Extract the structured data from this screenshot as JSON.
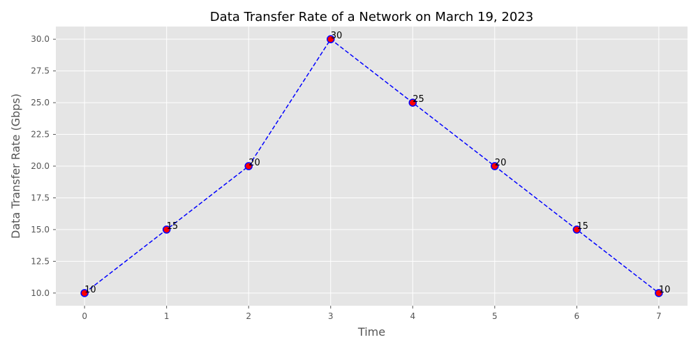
{
  "chart_data": {
    "type": "line",
    "title": "Data Transfer Rate of a Network on March 19, 2023",
    "xlabel": "Time",
    "ylabel": "Data Transfer Rate (Gbps)",
    "x": [
      0,
      1,
      2,
      3,
      4,
      5,
      6,
      7
    ],
    "series": [
      {
        "values": [
          10,
          15,
          20,
          30,
          25,
          20,
          15,
          10
        ]
      }
    ],
    "data_labels": [
      "10",
      "15",
      "20",
      "30",
      "25",
      "20",
      "15",
      "10"
    ],
    "x_ticks": [
      "0",
      "1",
      "2",
      "3",
      "4",
      "5",
      "6",
      "7"
    ],
    "y_ticks": [
      "10.0",
      "12.5",
      "15.0",
      "17.5",
      "20.0",
      "22.5",
      "25.0",
      "27.5",
      "30.0"
    ],
    "xlim": [
      -0.35,
      7.35
    ],
    "ylim": [
      9.0,
      31.0
    ],
    "grid": true,
    "colors": {
      "plot_background": "#e5e5e5",
      "line": "#0000ff",
      "marker_fill": "#ff0000",
      "marker_edge": "#0000ff"
    }
  }
}
